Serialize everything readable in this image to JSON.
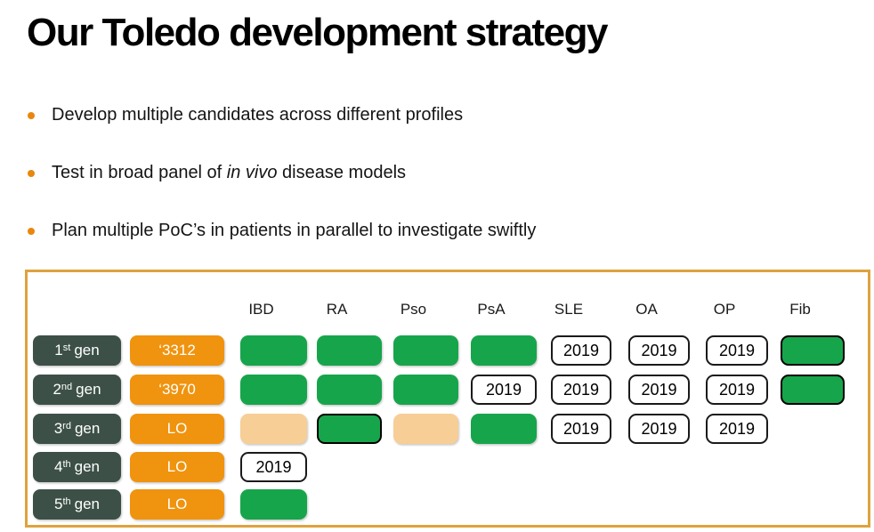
{
  "title": "Our Toledo development strategy",
  "bullets": [
    [
      {
        "t": "Develop multiple candidates across different profiles"
      }
    ],
    [
      {
        "t": "Test in broad panel of "
      },
      {
        "t": "in vivo",
        "italic": true
      },
      {
        "t": " disease models"
      }
    ],
    [
      {
        "t": "Plan multiple PoC’s in patients in parallel to investigate swiftly"
      }
    ]
  ],
  "matrix": {
    "columns": [
      "IBD",
      "RA",
      "Pso",
      "PsA",
      "SLE",
      "OA",
      "OP",
      "Fib"
    ],
    "year_label": "2019",
    "rows": [
      {
        "gen_num": "1",
        "gen_sup": "st",
        "gen_word": "gen",
        "code": "‘3312",
        "cells": [
          "green",
          "green",
          "green",
          "green",
          "year",
          "year",
          "year",
          "green-outlined"
        ]
      },
      {
        "gen_num": "2",
        "gen_sup": "nd",
        "gen_word": "gen",
        "code": "‘3970",
        "cells": [
          "green",
          "green",
          "green",
          "year",
          "year",
          "year",
          "year",
          "green-outlined"
        ]
      },
      {
        "gen_num": "3",
        "gen_sup": "rd",
        "gen_word": "gen",
        "code": "LO",
        "cells": [
          "tan",
          "green-outlined",
          "tan",
          "green",
          "year",
          "year",
          "year",
          "none"
        ]
      },
      {
        "gen_num": "4",
        "gen_sup": "th",
        "gen_word": "gen",
        "code": "LO",
        "cells": [
          "year",
          "none",
          "none",
          "none",
          "none",
          "none",
          "none",
          "none"
        ]
      },
      {
        "gen_num": "5",
        "gen_sup": "th",
        "gen_word": "gen",
        "code": "LO",
        "cells": [
          "green",
          "none",
          "none",
          "none",
          "none",
          "none",
          "none",
          "none"
        ]
      }
    ]
  },
  "colors": {
    "green": "#17A54B",
    "tan": "#F6CE96",
    "dark_slate": "#3C5047",
    "orange": "#F0930E",
    "bullet_orange": "#E8870E",
    "box_border": "#DFA23E"
  }
}
